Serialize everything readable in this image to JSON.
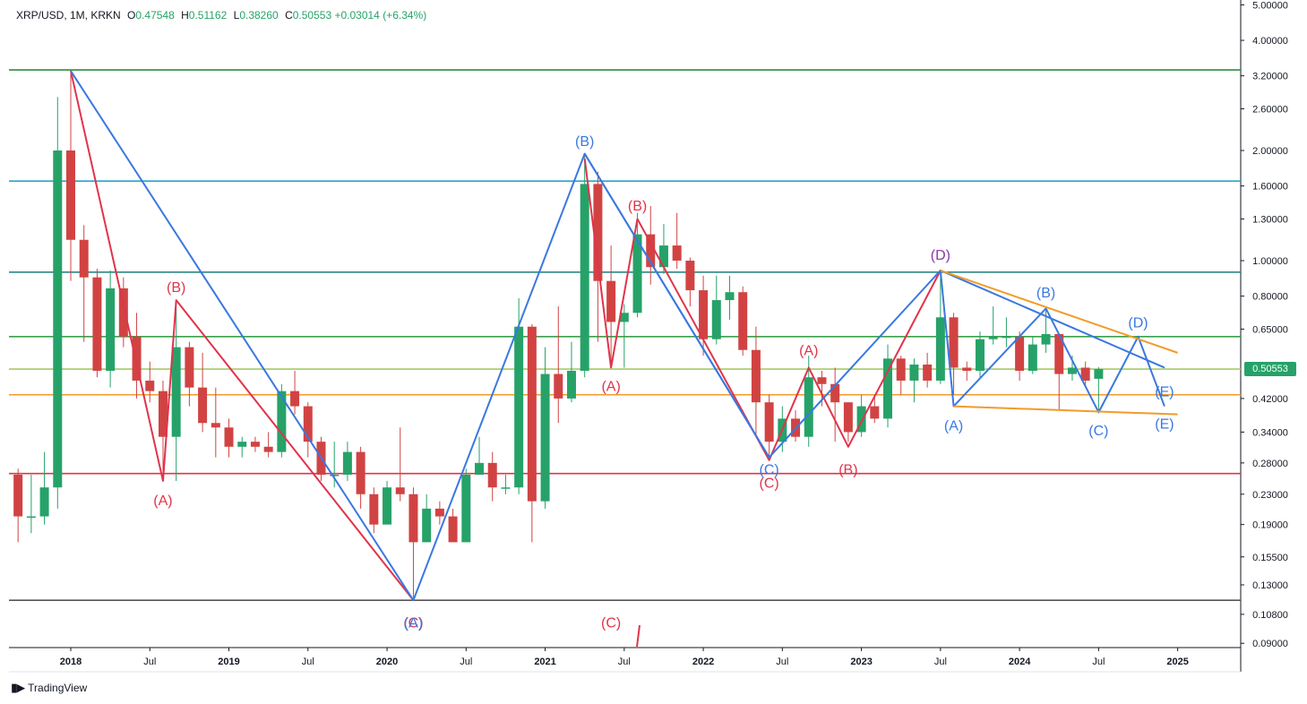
{
  "legend": {
    "symbol": "XRP/USD, 1M, KRKN",
    "o_label": "O",
    "o_value": "0.47548",
    "h_label": "H",
    "h_value": "0.51162",
    "l_label": "L",
    "l_value": "0.38260",
    "c_label": "C",
    "c_value": "0.50553",
    "change": "+0.03014 (+6.34%)"
  },
  "last_price_tag": "0.50553",
  "brand": "TradingView",
  "colors": {
    "up": "#26a269",
    "down": "#d14343",
    "wave_red": "#e0344a",
    "wave_blue": "#3a78e0",
    "triangle": "#f29b2a",
    "axis_text": "#131722"
  },
  "chart_data": {
    "type": "candlestick",
    "scale": "log",
    "ylim": [
      0.085,
      5.0
    ],
    "y_ticks": [
      "5.00000",
      "4.00000",
      "3.20000",
      "2.60000",
      "2.00000",
      "1.60000",
      "1.30000",
      "1.00000",
      "0.80000",
      "0.65000",
      "0.50553",
      "0.42000",
      "0.34000",
      "0.28000",
      "0.23000",
      "0.19000",
      "0.15500",
      "0.13000",
      "0.10800",
      "0.09000"
    ],
    "x_ticks": [
      "2018",
      "Jul",
      "2019",
      "Jul",
      "2020",
      "Jul",
      "2021",
      "Jul",
      "2022",
      "Jul",
      "2023",
      "Jul",
      "2024",
      "Jul",
      "2025"
    ],
    "candles": [
      {
        "date": "2017-09",
        "o": 0.26,
        "h": 0.27,
        "l": 0.17,
        "c": 0.2
      },
      {
        "date": "2017-10",
        "o": 0.2,
        "h": 0.26,
        "l": 0.18,
        "c": 0.2
      },
      {
        "date": "2017-11",
        "o": 0.2,
        "h": 0.3,
        "l": 0.19,
        "c": 0.24
      },
      {
        "date": "2017-12",
        "o": 0.24,
        "h": 2.8,
        "l": 0.21,
        "c": 2.0
      },
      {
        "date": "2018-01",
        "o": 2.0,
        "h": 3.3,
        "l": 0.88,
        "c": 1.14
      },
      {
        "date": "2018-02",
        "o": 1.14,
        "h": 1.25,
        "l": 0.6,
        "c": 0.9
      },
      {
        "date": "2018-03",
        "o": 0.9,
        "h": 0.95,
        "l": 0.48,
        "c": 0.5
      },
      {
        "date": "2018-04",
        "o": 0.5,
        "h": 0.94,
        "l": 0.45,
        "c": 0.84
      },
      {
        "date": "2018-05",
        "o": 0.84,
        "h": 0.9,
        "l": 0.58,
        "c": 0.62
      },
      {
        "date": "2018-06",
        "o": 0.62,
        "h": 0.72,
        "l": 0.42,
        "c": 0.47
      },
      {
        "date": "2018-07",
        "o": 0.47,
        "h": 0.53,
        "l": 0.41,
        "c": 0.44
      },
      {
        "date": "2018-08",
        "o": 0.44,
        "h": 0.47,
        "l": 0.25,
        "c": 0.33
      },
      {
        "date": "2018-09",
        "o": 0.33,
        "h": 0.78,
        "l": 0.25,
        "c": 0.58
      },
      {
        "date": "2018-10",
        "o": 0.58,
        "h": 0.6,
        "l": 0.4,
        "c": 0.45
      },
      {
        "date": "2018-11",
        "o": 0.45,
        "h": 0.56,
        "l": 0.34,
        "c": 0.36
      },
      {
        "date": "2018-12",
        "o": 0.36,
        "h": 0.45,
        "l": 0.29,
        "c": 0.35
      },
      {
        "date": "2019-01",
        "o": 0.35,
        "h": 0.37,
        "l": 0.29,
        "c": 0.31
      },
      {
        "date": "2019-02",
        "o": 0.31,
        "h": 0.33,
        "l": 0.29,
        "c": 0.32
      },
      {
        "date": "2019-03",
        "o": 0.32,
        "h": 0.33,
        "l": 0.3,
        "c": 0.31
      },
      {
        "date": "2019-04",
        "o": 0.31,
        "h": 0.34,
        "l": 0.29,
        "c": 0.3
      },
      {
        "date": "2019-05",
        "o": 0.3,
        "h": 0.46,
        "l": 0.29,
        "c": 0.44
      },
      {
        "date": "2019-06",
        "o": 0.44,
        "h": 0.5,
        "l": 0.38,
        "c": 0.4
      },
      {
        "date": "2019-07",
        "o": 0.4,
        "h": 0.41,
        "l": 0.29,
        "c": 0.32
      },
      {
        "date": "2019-08",
        "o": 0.32,
        "h": 0.33,
        "l": 0.25,
        "c": 0.26
      },
      {
        "date": "2019-09",
        "o": 0.26,
        "h": 0.32,
        "l": 0.24,
        "c": 0.26
      },
      {
        "date": "2019-10",
        "o": 0.26,
        "h": 0.32,
        "l": 0.25,
        "c": 0.3
      },
      {
        "date": "2019-11",
        "o": 0.3,
        "h": 0.31,
        "l": 0.21,
        "c": 0.23
      },
      {
        "date": "2019-12",
        "o": 0.23,
        "h": 0.24,
        "l": 0.18,
        "c": 0.19
      },
      {
        "date": "2020-01",
        "o": 0.19,
        "h": 0.25,
        "l": 0.19,
        "c": 0.24
      },
      {
        "date": "2020-02",
        "o": 0.24,
        "h": 0.35,
        "l": 0.22,
        "c": 0.23
      },
      {
        "date": "2020-03",
        "o": 0.23,
        "h": 0.24,
        "l": 0.12,
        "c": 0.17
      },
      {
        "date": "2020-04",
        "o": 0.17,
        "h": 0.23,
        "l": 0.17,
        "c": 0.21
      },
      {
        "date": "2020-05",
        "o": 0.21,
        "h": 0.22,
        "l": 0.19,
        "c": 0.2
      },
      {
        "date": "2020-06",
        "o": 0.2,
        "h": 0.21,
        "l": 0.17,
        "c": 0.17
      },
      {
        "date": "2020-07",
        "o": 0.17,
        "h": 0.27,
        "l": 0.17,
        "c": 0.26
      },
      {
        "date": "2020-08",
        "o": 0.26,
        "h": 0.33,
        "l": 0.26,
        "c": 0.28
      },
      {
        "date": "2020-09",
        "o": 0.28,
        "h": 0.3,
        "l": 0.22,
        "c": 0.24
      },
      {
        "date": "2020-10",
        "o": 0.24,
        "h": 0.26,
        "l": 0.23,
        "c": 0.24
      },
      {
        "date": "2020-11",
        "o": 0.24,
        "h": 0.79,
        "l": 0.23,
        "c": 0.66
      },
      {
        "date": "2020-12",
        "o": 0.66,
        "h": 0.67,
        "l": 0.17,
        "c": 0.22
      },
      {
        "date": "2021-01",
        "o": 0.22,
        "h": 0.58,
        "l": 0.21,
        "c": 0.49
      },
      {
        "date": "2021-02",
        "o": 0.49,
        "h": 0.75,
        "l": 0.36,
        "c": 0.42
      },
      {
        "date": "2021-03",
        "o": 0.42,
        "h": 0.6,
        "l": 0.41,
        "c": 0.5
      },
      {
        "date": "2021-04",
        "o": 0.5,
        "h": 1.96,
        "l": 0.48,
        "c": 1.62
      },
      {
        "date": "2021-05",
        "o": 1.62,
        "h": 1.75,
        "l": 0.6,
        "c": 0.88
      },
      {
        "date": "2021-06",
        "o": 0.88,
        "h": 1.1,
        "l": 0.51,
        "c": 0.68
      },
      {
        "date": "2021-07",
        "o": 0.68,
        "h": 0.76,
        "l": 0.51,
        "c": 0.72
      },
      {
        "date": "2021-08",
        "o": 0.72,
        "h": 1.35,
        "l": 0.7,
        "c": 1.18
      },
      {
        "date": "2021-09",
        "o": 1.18,
        "h": 1.41,
        "l": 0.86,
        "c": 0.96
      },
      {
        "date": "2021-10",
        "o": 0.96,
        "h": 1.26,
        "l": 0.92,
        "c": 1.1
      },
      {
        "date": "2021-11",
        "o": 1.1,
        "h": 1.35,
        "l": 0.95,
        "c": 1.0
      },
      {
        "date": "2021-12",
        "o": 1.0,
        "h": 1.02,
        "l": 0.75,
        "c": 0.83
      },
      {
        "date": "2022-01",
        "o": 0.83,
        "h": 0.91,
        "l": 0.55,
        "c": 0.61
      },
      {
        "date": "2022-02",
        "o": 0.61,
        "h": 0.91,
        "l": 0.59,
        "c": 0.78
      },
      {
        "date": "2022-03",
        "o": 0.78,
        "h": 0.91,
        "l": 0.69,
        "c": 0.82
      },
      {
        "date": "2022-04",
        "o": 0.82,
        "h": 0.85,
        "l": 0.55,
        "c": 0.57
      },
      {
        "date": "2022-05",
        "o": 0.57,
        "h": 0.66,
        "l": 0.33,
        "c": 0.41
      },
      {
        "date": "2022-06",
        "o": 0.41,
        "h": 0.43,
        "l": 0.29,
        "c": 0.32
      },
      {
        "date": "2022-07",
        "o": 0.32,
        "h": 0.4,
        "l": 0.3,
        "c": 0.37
      },
      {
        "date": "2022-08",
        "o": 0.37,
        "h": 0.39,
        "l": 0.32,
        "c": 0.33
      },
      {
        "date": "2022-09",
        "o": 0.33,
        "h": 0.55,
        "l": 0.31,
        "c": 0.48
      },
      {
        "date": "2022-10",
        "o": 0.48,
        "h": 0.5,
        "l": 0.4,
        "c": 0.46
      },
      {
        "date": "2022-11",
        "o": 0.46,
        "h": 0.51,
        "l": 0.32,
        "c": 0.41
      },
      {
        "date": "2022-12",
        "o": 0.41,
        "h": 0.41,
        "l": 0.32,
        "c": 0.34
      },
      {
        "date": "2023-01",
        "o": 0.34,
        "h": 0.43,
        "l": 0.33,
        "c": 0.4
      },
      {
        "date": "2023-02",
        "o": 0.4,
        "h": 0.43,
        "l": 0.36,
        "c": 0.37
      },
      {
        "date": "2023-03",
        "o": 0.37,
        "h": 0.59,
        "l": 0.35,
        "c": 0.54
      },
      {
        "date": "2023-04",
        "o": 0.54,
        "h": 0.55,
        "l": 0.43,
        "c": 0.47
      },
      {
        "date": "2023-05",
        "o": 0.47,
        "h": 0.54,
        "l": 0.41,
        "c": 0.52
      },
      {
        "date": "2023-06",
        "o": 0.52,
        "h": 0.56,
        "l": 0.45,
        "c": 0.47
      },
      {
        "date": "2023-07",
        "o": 0.47,
        "h": 0.94,
        "l": 0.46,
        "c": 0.7
      },
      {
        "date": "2023-08",
        "o": 0.7,
        "h": 0.72,
        "l": 0.43,
        "c": 0.51
      },
      {
        "date": "2023-09",
        "o": 0.51,
        "h": 0.53,
        "l": 0.47,
        "c": 0.5
      },
      {
        "date": "2023-10",
        "o": 0.5,
        "h": 0.64,
        "l": 0.48,
        "c": 0.61
      },
      {
        "date": "2023-11",
        "o": 0.61,
        "h": 0.75,
        "l": 0.59,
        "c": 0.62
      },
      {
        "date": "2023-12",
        "o": 0.62,
        "h": 0.7,
        "l": 0.58,
        "c": 0.62
      },
      {
        "date": "2024-01",
        "o": 0.62,
        "h": 0.64,
        "l": 0.47,
        "c": 0.5
      },
      {
        "date": "2024-02",
        "o": 0.5,
        "h": 0.62,
        "l": 0.49,
        "c": 0.59
      },
      {
        "date": "2024-03",
        "o": 0.59,
        "h": 0.74,
        "l": 0.56,
        "c": 0.63
      },
      {
        "date": "2024-04",
        "o": 0.63,
        "h": 0.63,
        "l": 0.39,
        "c": 0.49
      },
      {
        "date": "2024-05",
        "o": 0.49,
        "h": 0.55,
        "l": 0.47,
        "c": 0.51
      },
      {
        "date": "2024-06",
        "o": 0.51,
        "h": 0.53,
        "l": 0.45,
        "c": 0.47
      },
      {
        "date": "2024-07",
        "o": 0.47548,
        "h": 0.51162,
        "l": 0.3826,
        "c": 0.50553
      }
    ],
    "horizontal_levels": [
      {
        "price": 3.32,
        "color": "#2e8b3e"
      },
      {
        "price": 1.65,
        "color": "#26a6c8"
      },
      {
        "price": 0.93,
        "color": "#1b7d7a"
      },
      {
        "price": 0.62,
        "color": "#3aa04a"
      },
      {
        "price": 0.50553,
        "color": "#a5cc6a"
      },
      {
        "price": 0.43,
        "color": "#f29b2a"
      },
      {
        "price": 0.262,
        "color": "#e0344a"
      },
      {
        "price": 0.118,
        "color": "#555555"
      }
    ],
    "wave_lines": [
      {
        "color": "#e0344a",
        "points": [
          [
            "2018-01",
            3.3
          ],
          [
            "2018-08",
            0.25
          ],
          [
            "2018-09",
            0.78
          ],
          [
            "2020-03",
            0.118
          ]
        ]
      },
      {
        "color": "#3a78e0",
        "points": [
          [
            "2018-01",
            3.3
          ],
          [
            "2020-03",
            0.118
          ],
          [
            "2021-04",
            1.96
          ],
          [
            "2022-06",
            0.29
          ]
        ]
      },
      {
        "color": "#e0344a",
        "points": [
          [
            "2021-04",
            1.9
          ],
          [
            "2021-06",
            0.51
          ],
          [
            "2021-08",
            1.3
          ],
          [
            "2022-06",
            0.285
          ],
          [
            "2022-09",
            0.51
          ],
          [
            "2022-12",
            0.31
          ],
          [
            "2023-07",
            0.94
          ]
        ]
      },
      {
        "color": "#3a78e0",
        "points": [
          [
            "2021-04",
            1.96
          ],
          [
            "2022-06",
            0.29
          ],
          [
            "2023-07",
            0.94
          ],
          [
            "2023-08",
            0.4
          ],
          [
            "2024-03",
            0.74
          ],
          [
            "2024-07",
            0.385
          ],
          [
            "2024-10",
            0.62
          ],
          [
            "2024-12",
            0.4
          ]
        ]
      },
      {
        "color": "#3a78e0",
        "points": [
          [
            "2023-07",
            0.94
          ],
          [
            "2024-12",
            0.51
          ]
        ]
      },
      {
        "color": "#f29b2a",
        "points": [
          [
            "2023-07",
            0.94
          ],
          [
            "2025-01",
            0.56
          ]
        ]
      },
      {
        "color": "#f29b2a",
        "points": [
          [
            "2023-08",
            0.4
          ],
          [
            "2025-01",
            0.38
          ]
        ]
      },
      {
        "color": "#e0344a",
        "points": [
          [
            "2021-05",
            0.085
          ],
          [
            "2021-05",
            0.08
          ]
        ]
      }
    ],
    "wave_labels": [
      {
        "text": "(A)",
        "date": "2018-08",
        "price": 0.222,
        "color": "#e0344a"
      },
      {
        "text": "(B)",
        "date": "2018-09",
        "price": 0.85,
        "color": "#e0344a"
      },
      {
        "text": "(C)",
        "date": "2020-03",
        "price": 0.103,
        "color": "#e0344a"
      },
      {
        "text": "(A)",
        "date": "2020-03",
        "price": 0.103,
        "color": "#3a78e0"
      },
      {
        "text": "(B)",
        "date": "2021-04",
        "price": 2.13,
        "color": "#3a78e0"
      },
      {
        "text": "(A)",
        "date": "2021-06",
        "price": 0.455,
        "color": "#e0344a"
      },
      {
        "text": "(B)",
        "date": "2021-08",
        "price": 1.42,
        "color": "#e0344a"
      },
      {
        "text": "(C)",
        "date": "2021-06",
        "price": 0.103,
        "color": "#e0344a"
      },
      {
        "text": "(C)",
        "date": "2022-06",
        "price": 0.27,
        "color": "#3a78e0"
      },
      {
        "text": "(C)",
        "date": "2022-06",
        "price": 0.248,
        "color": "#e0344a"
      },
      {
        "text": "(A)",
        "date": "2022-09",
        "price": 0.57,
        "color": "#e0344a"
      },
      {
        "text": "(B)",
        "date": "2022-12",
        "price": 0.27,
        "color": "#e0344a"
      },
      {
        "text": "(D)",
        "date": "2023-07",
        "price": 1.04,
        "color": "#e0344a"
      },
      {
        "text": "(D)",
        "date": "2023-07",
        "price": 1.04,
        "color": "#8c4ab8"
      },
      {
        "text": "(A)",
        "date": "2023-08",
        "price": 0.355,
        "color": "#3a78e0"
      },
      {
        "text": "(B)",
        "date": "2024-03",
        "price": 0.82,
        "color": "#3a78e0"
      },
      {
        "text": "(C)",
        "date": "2024-07",
        "price": 0.345,
        "color": "#3a78e0"
      },
      {
        "text": "(D)",
        "date": "2024-10",
        "price": 0.68,
        "color": "#3a78e0"
      },
      {
        "text": "(E)",
        "date": "2024-12",
        "price": 0.44,
        "color": "#3a78e0"
      },
      {
        "text": "(E)",
        "date": "2024-12",
        "price": 0.36,
        "color": "#3a78e0"
      }
    ]
  }
}
